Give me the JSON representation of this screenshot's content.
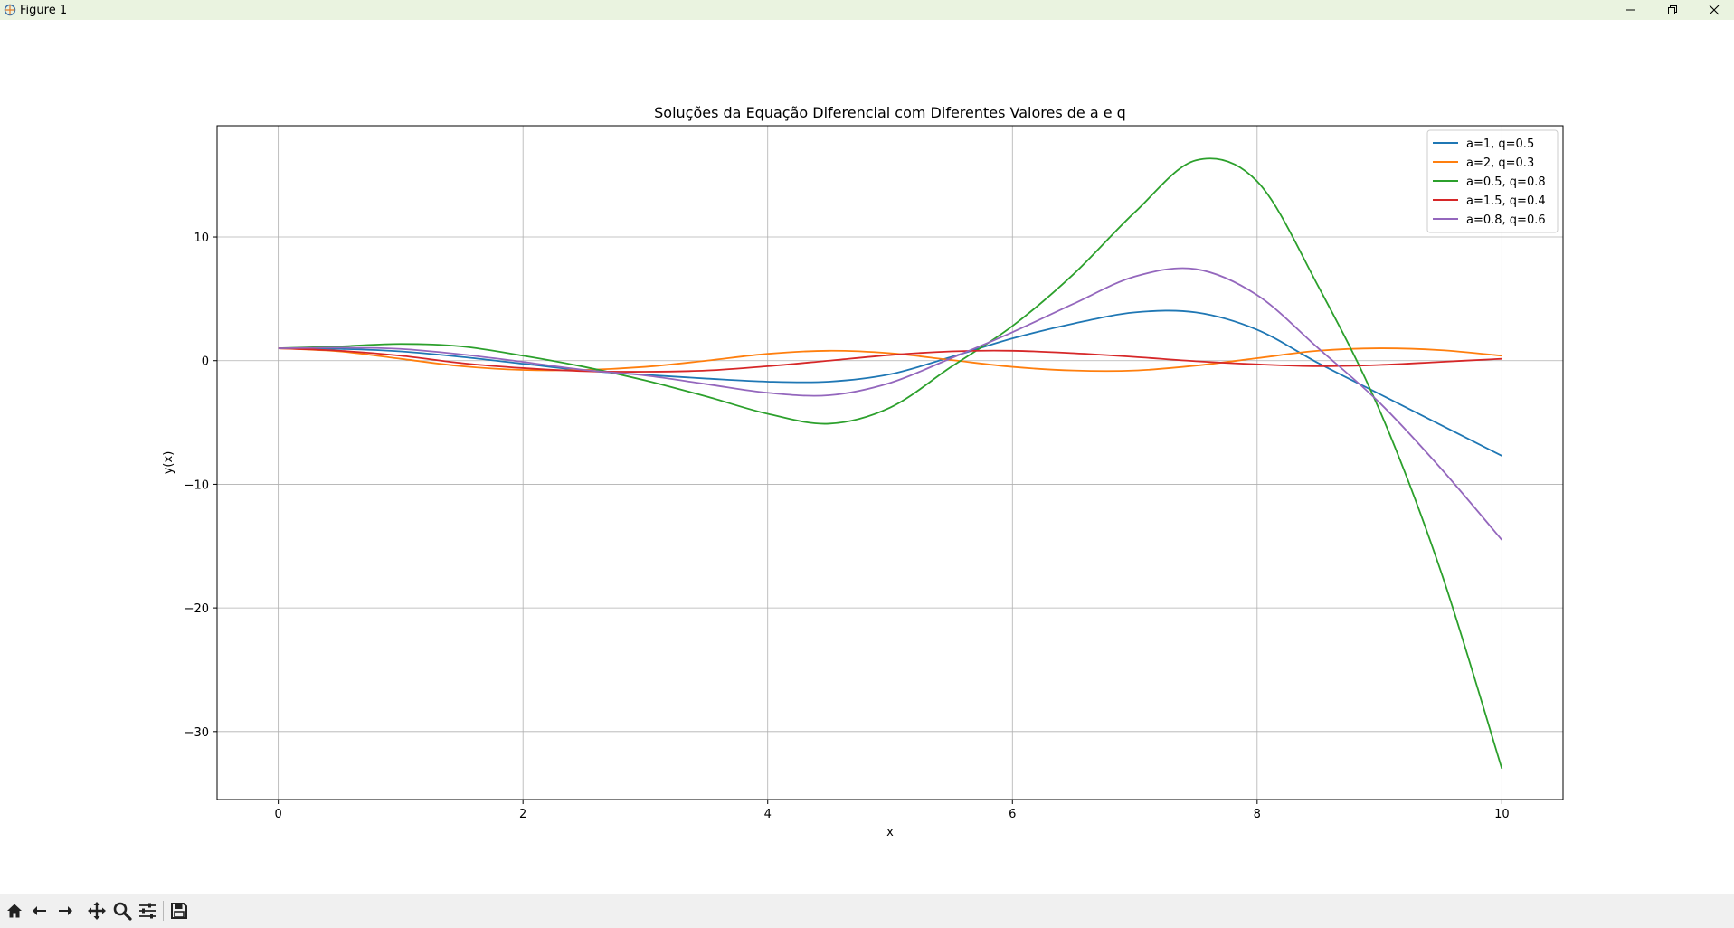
{
  "window": {
    "title": "Figure 1"
  },
  "colors": {
    "titlebar": "#eaf3e0",
    "toolbar": "#f0f0f0",
    "grid": "#b0b0b0"
  },
  "toolbar": {
    "buttons": [
      "home-icon",
      "back-arrow-icon",
      "forward-arrow-icon",
      "pan-icon",
      "zoom-icon",
      "configure-subplots-icon",
      "save-icon"
    ]
  },
  "chart_data": {
    "type": "line",
    "title": "Soluções da Equação Diferencial com Diferentes Valores de a e q",
    "xlabel": "x",
    "ylabel": "y(x)",
    "xlim": [
      -0.5,
      10.5
    ],
    "ylim": [
      -35.5,
      19
    ],
    "xticks": [
      0,
      2,
      4,
      6,
      8,
      10
    ],
    "yticks": [
      -30,
      -20,
      -10,
      0,
      10
    ],
    "ytick_labels": [
      "−30",
      "−20",
      "−10",
      "0",
      "10"
    ],
    "grid": true,
    "legend_position": "top-right",
    "x": [
      0,
      0.5,
      1,
      1.5,
      2,
      2.5,
      3,
      3.5,
      4,
      4.5,
      5,
      5.5,
      6,
      6.5,
      7,
      7.5,
      8,
      8.5,
      9,
      9.5,
      10
    ],
    "series": [
      {
        "name": "a=1, q=0.5",
        "color": "#1f77b4",
        "values": [
          1.0,
          0.95,
          0.75,
          0.3,
          -0.25,
          -0.8,
          -1.15,
          -1.45,
          -1.7,
          -1.7,
          -1.1,
          0.3,
          1.8,
          3.0,
          3.9,
          3.9,
          2.5,
          -0.2,
          -2.7,
          -5.2,
          -7.7
        ]
      },
      {
        "name": "a=2, q=0.3",
        "color": "#ff7f0e",
        "values": [
          1.0,
          0.75,
          0.15,
          -0.45,
          -0.75,
          -0.75,
          -0.5,
          0.0,
          0.55,
          0.8,
          0.6,
          0.05,
          -0.5,
          -0.8,
          -0.8,
          -0.4,
          0.2,
          0.8,
          1.0,
          0.85,
          0.4
        ]
      },
      {
        "name": "a=0.5, q=0.8",
        "color": "#2ca02c",
        "values": [
          1.0,
          1.15,
          1.35,
          1.15,
          0.4,
          -0.5,
          -1.6,
          -2.9,
          -4.3,
          -5.1,
          -3.8,
          -0.5,
          2.8,
          7.0,
          12.0,
          16.2,
          14.5,
          6.0,
          -4.0,
          -17.0,
          -33.0
        ]
      },
      {
        "name": "a=1.5, q=0.4",
        "color": "#d62728",
        "values": [
          1.0,
          0.8,
          0.4,
          -0.2,
          -0.6,
          -0.85,
          -0.9,
          -0.8,
          -0.45,
          0.0,
          0.45,
          0.75,
          0.8,
          0.6,
          0.3,
          -0.05,
          -0.3,
          -0.45,
          -0.35,
          -0.1,
          0.15
        ]
      },
      {
        "name": "a=0.8, q=0.6",
        "color": "#9467bd",
        "values": [
          1.0,
          1.05,
          0.95,
          0.5,
          -0.1,
          -0.75,
          -1.2,
          -1.9,
          -2.6,
          -2.8,
          -1.8,
          0.2,
          2.3,
          4.6,
          6.8,
          7.4,
          5.3,
          1.0,
          -3.4,
          -8.7,
          -14.5
        ]
      }
    ]
  }
}
